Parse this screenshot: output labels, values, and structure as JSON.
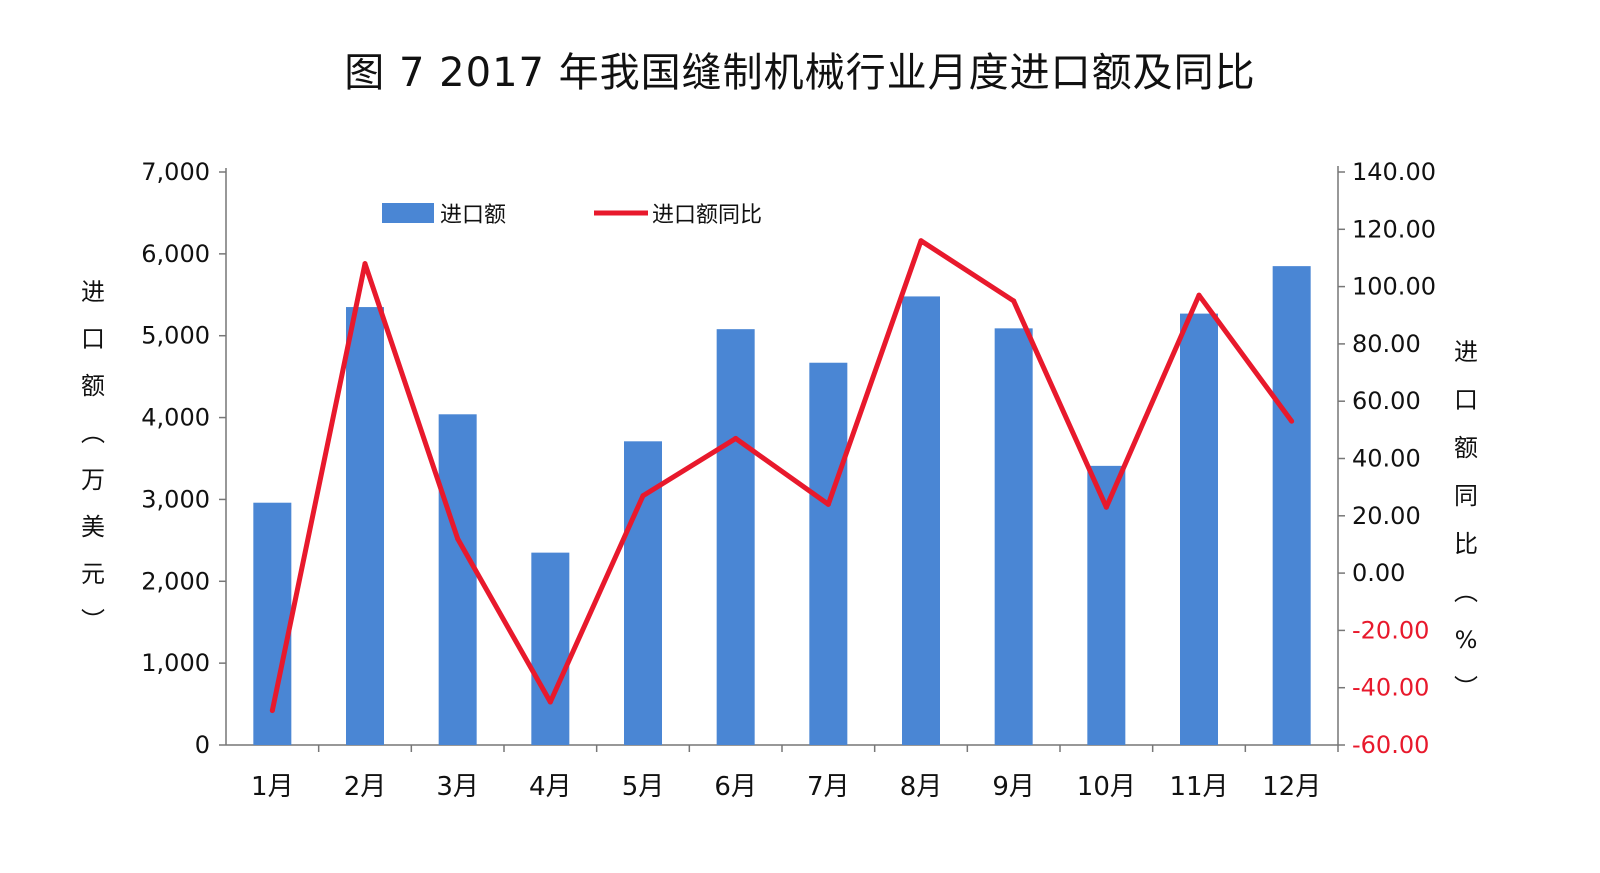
{
  "chart_data": {
    "type": "bar",
    "title": "图 7  2017 年我国缝制机械行业月度进口额及同比",
    "categories": [
      "1月",
      "2月",
      "3月",
      "4月",
      "5月",
      "6月",
      "7月",
      "8月",
      "9月",
      "10月",
      "11月",
      "12月"
    ],
    "series": [
      {
        "name": "进口额",
        "type": "bar",
        "axis": "left",
        "color": "#4a86d4",
        "values": [
          2960,
          5350,
          4040,
          2350,
          3710,
          5080,
          4670,
          5480,
          5090,
          3410,
          5270,
          5850
        ]
      },
      {
        "name": "进口额同比",
        "type": "line",
        "axis": "right",
        "color": "#e8192c",
        "values": [
          -48,
          108,
          12,
          -45,
          27,
          47,
          24,
          116,
          95,
          23,
          97,
          53
        ]
      }
    ],
    "y_left": {
      "label": "进口额（万美元）",
      "range": [
        0,
        7000
      ],
      "ticks": [
        "0",
        "1,000",
        "2,000",
        "3,000",
        "4,000",
        "5,000",
        "6,000",
        "7,000"
      ]
    },
    "y_right": {
      "label": "进口额同比（%）",
      "range": [
        -60,
        140
      ],
      "ticks": [
        "-60.00",
        "-40.00",
        "-20.00",
        "0.00",
        "20.00",
        "40.00",
        "60.00",
        "80.00",
        "100.00",
        "120.00",
        "140.00"
      ],
      "negative_tick_color": "#e8192c"
    },
    "legend_position": "top-left",
    "grid": false
  }
}
